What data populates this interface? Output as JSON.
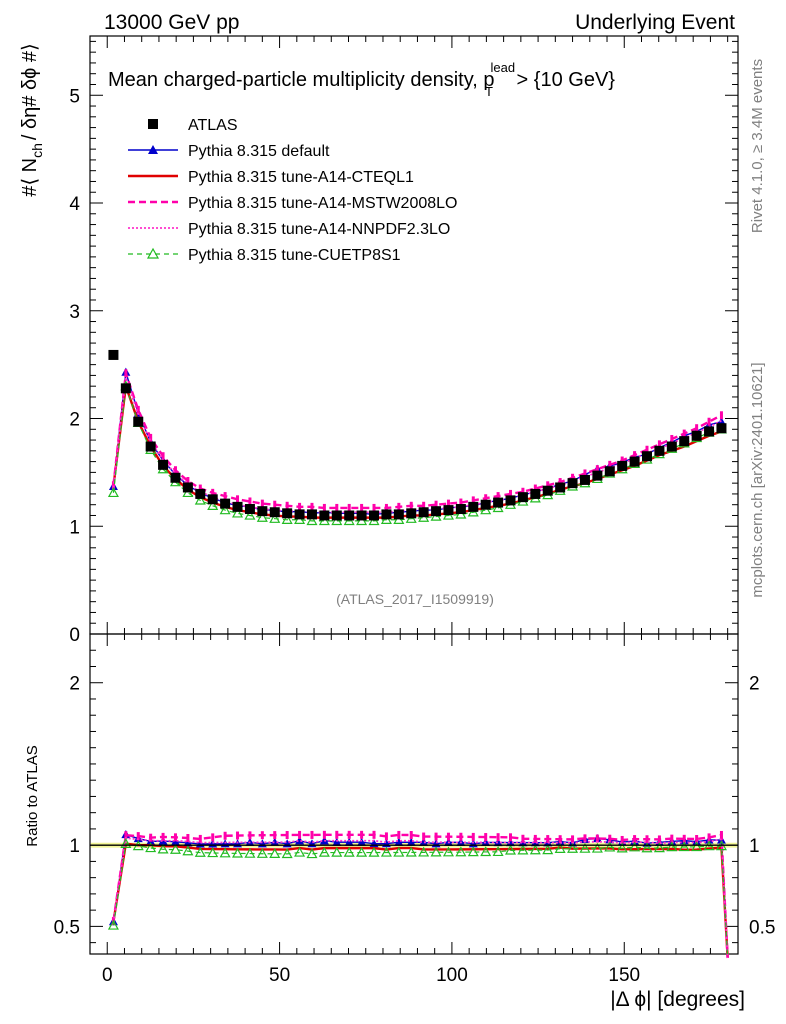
{
  "header": {
    "energy": "13000 GeV pp",
    "process": "Underlying Event"
  },
  "side_labels": {
    "rivet": "Rivet 4.1.0, ≥ 3.4M events",
    "mcplots": "mcplots.cern.ch [arXiv:2401.10621]"
  },
  "chart_data": {
    "type": "line",
    "title_main": "Mean charged-particle multiplicity density, p",
    "title_sup": "lead",
    "title_sub": "T",
    "title_tail": " > {10 GeV}",
    "analysis_id": "(ATLAS_2017_I1509919)",
    "ylabel_top": "#⟨ N",
    "ylabel_sub": "ch",
    "ylabel_rest": "/ δη# δϕ #⟩",
    "ylabel_ratio": "Ratio to ATLAS",
    "xlabel": "|Δ ϕ| [degrees]",
    "xlim": [
      -5,
      183
    ],
    "ylim_main": [
      0,
      5.55
    ],
    "ylim_ratio": [
      0.33,
      2.3
    ],
    "x_ticks": [
      0,
      50,
      100,
      150
    ],
    "y_ticks_main": [
      0,
      1,
      2,
      3,
      4,
      5
    ],
    "y_ticks_ratio": [
      0.5,
      1,
      2
    ],
    "x": [
      1.8,
      5.4,
      9,
      12.6,
      16.2,
      19.8,
      23.4,
      27,
      30.6,
      34.2,
      37.8,
      41.4,
      45,
      48.6,
      52.2,
      55.8,
      59.4,
      63,
      66.6,
      70.2,
      73.8,
      77.4,
      81,
      84.6,
      88.2,
      91.8,
      95.4,
      99,
      102.6,
      106.2,
      109.8,
      113.4,
      117,
      120.6,
      124.2,
      127.8,
      131.4,
      135,
      138.6,
      142.2,
      145.8,
      149.4,
      153,
      156.6,
      160.2,
      163.8,
      167.4,
      171,
      174.6,
      178.2
    ],
    "series": [
      {
        "name": "ATLAS",
        "color": "#000000",
        "values": [
          2.59,
          2.28,
          1.97,
          1.74,
          1.57,
          1.45,
          1.36,
          1.3,
          1.25,
          1.21,
          1.18,
          1.16,
          1.14,
          1.13,
          1.12,
          1.11,
          1.11,
          1.1,
          1.1,
          1.1,
          1.1,
          1.1,
          1.11,
          1.11,
          1.12,
          1.13,
          1.14,
          1.15,
          1.16,
          1.18,
          1.2,
          1.22,
          1.24,
          1.27,
          1.3,
          1.33,
          1.36,
          1.4,
          1.43,
          1.47,
          1.51,
          1.56,
          1.6,
          1.65,
          1.7,
          1.74,
          1.79,
          1.84,
          1.88,
          1.91
        ]
      },
      {
        "name": "Pythia 8.315 default",
        "color": "#0000cc",
        "values": [
          1.37,
          2.43,
          2.05,
          1.78,
          1.61,
          1.48,
          1.38,
          1.31,
          1.26,
          1.22,
          1.19,
          1.18,
          1.15,
          1.15,
          1.13,
          1.14,
          1.12,
          1.13,
          1.12,
          1.12,
          1.12,
          1.11,
          1.12,
          1.13,
          1.14,
          1.15,
          1.15,
          1.17,
          1.18,
          1.19,
          1.22,
          1.24,
          1.26,
          1.29,
          1.32,
          1.35,
          1.39,
          1.42,
          1.48,
          1.53,
          1.56,
          1.59,
          1.64,
          1.67,
          1.73,
          1.78,
          1.84,
          1.88,
          1.94,
          1.97
        ]
      },
      {
        "name": "Pythia 8.315 tune-A14-CTEQL1",
        "color": "#e00000",
        "values": [
          1.37,
          2.3,
          1.97,
          1.74,
          1.56,
          1.44,
          1.34,
          1.27,
          1.22,
          1.18,
          1.15,
          1.13,
          1.11,
          1.1,
          1.09,
          1.09,
          1.08,
          1.08,
          1.08,
          1.08,
          1.08,
          1.08,
          1.08,
          1.09,
          1.1,
          1.1,
          1.11,
          1.12,
          1.13,
          1.15,
          1.17,
          1.19,
          1.21,
          1.24,
          1.27,
          1.3,
          1.34,
          1.37,
          1.4,
          1.44,
          1.48,
          1.52,
          1.56,
          1.61,
          1.66,
          1.7,
          1.74,
          1.79,
          1.84,
          1.88
        ]
      },
      {
        "name": "Pythia 8.315 tune-A14-MSTW2008LO",
        "color": "#ff00aa",
        "values": [
          1.38,
          2.42,
          2.08,
          1.82,
          1.65,
          1.52,
          1.42,
          1.35,
          1.31,
          1.28,
          1.25,
          1.23,
          1.21,
          1.2,
          1.19,
          1.18,
          1.18,
          1.17,
          1.17,
          1.17,
          1.17,
          1.17,
          1.17,
          1.18,
          1.19,
          1.19,
          1.2,
          1.21,
          1.22,
          1.24,
          1.26,
          1.28,
          1.3,
          1.32,
          1.35,
          1.38,
          1.41,
          1.45,
          1.49,
          1.53,
          1.57,
          1.61,
          1.66,
          1.71,
          1.76,
          1.81,
          1.86,
          1.91,
          1.97,
          2.03
        ]
      },
      {
        "name": "Pythia 8.315 tune-A14-NNPDF2.3LO",
        "color": "#ff33cc",
        "values": [
          1.36,
          2.38,
          2.04,
          1.79,
          1.61,
          1.49,
          1.39,
          1.32,
          1.27,
          1.23,
          1.2,
          1.18,
          1.16,
          1.15,
          1.14,
          1.14,
          1.13,
          1.13,
          1.13,
          1.13,
          1.13,
          1.13,
          1.13,
          1.14,
          1.15,
          1.15,
          1.16,
          1.17,
          1.18,
          1.2,
          1.22,
          1.24,
          1.26,
          1.29,
          1.32,
          1.35,
          1.38,
          1.42,
          1.46,
          1.5,
          1.54,
          1.58,
          1.63,
          1.68,
          1.72,
          1.77,
          1.82,
          1.87,
          1.92,
          1.98
        ]
      },
      {
        "name": "Pythia 8.315 tune-CUETP8S1",
        "color": "#22bb22",
        "values": [
          1.31,
          2.3,
          1.96,
          1.71,
          1.53,
          1.41,
          1.31,
          1.24,
          1.19,
          1.15,
          1.12,
          1.1,
          1.08,
          1.07,
          1.06,
          1.06,
          1.05,
          1.05,
          1.05,
          1.05,
          1.05,
          1.05,
          1.06,
          1.06,
          1.07,
          1.08,
          1.09,
          1.1,
          1.11,
          1.13,
          1.15,
          1.17,
          1.2,
          1.23,
          1.26,
          1.29,
          1.33,
          1.37,
          1.4,
          1.44,
          1.49,
          1.53,
          1.58,
          1.62,
          1.67,
          1.72,
          1.77,
          1.82,
          1.87,
          1.9
        ]
      }
    ]
  }
}
